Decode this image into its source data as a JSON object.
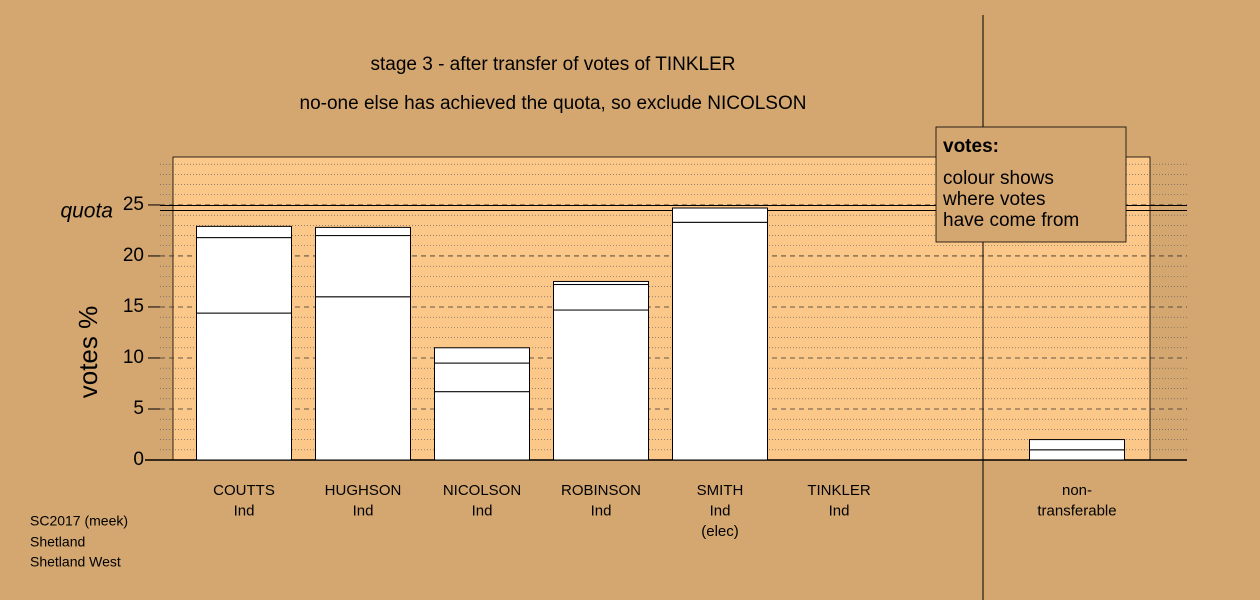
{
  "chart_data": {
    "type": "stacked_bar",
    "title": "stage 3 - after transfer of votes of TINKLER",
    "subtitle": "no-one else has achieved the quota, so exclude NICOLSON",
    "ylabel": "votes %",
    "quota_label": "quota",
    "quota": 24.7,
    "categories": [
      [
        "COUTTS",
        "Ind"
      ],
      [
        "HUGHSON",
        "Ind"
      ],
      [
        "NICOLSON",
        "Ind"
      ],
      [
        "ROBINSON",
        "Ind"
      ],
      [
        "SMITH",
        "Ind",
        "(elec)"
      ],
      [
        "TINKLER",
        "Ind"
      ],
      null,
      [
        "non-",
        "transferable"
      ]
    ],
    "series": [
      {
        "color": "#ffffff",
        "values": [
          14.4,
          16.0,
          6.7,
          14.7,
          23.3,
          0,
          null,
          1.0
        ]
      },
      {
        "color": "#ffffff",
        "values": [
          7.4,
          6.0,
          2.8,
          2.5,
          1.4,
          0,
          null,
          1.0
        ]
      },
      {
        "color": "#ffffff",
        "values": [
          1.1,
          0.8,
          1.5,
          0.3,
          null,
          0,
          null,
          null
        ]
      }
    ],
    "ylim": [
      0,
      29.7
    ],
    "yticks": [
      0,
      5,
      10,
      15,
      20,
      25
    ],
    "minor_yticks": [
      1,
      2,
      3,
      4,
      6,
      7,
      8,
      9,
      11,
      12,
      13,
      14,
      16,
      17,
      18,
      19,
      21,
      22,
      23,
      24,
      26,
      27,
      28,
      29
    ],
    "grid": true,
    "legend": {
      "title": "votes:",
      "lines": [
        "colour shows",
        "where votes",
        "have come from"
      ]
    },
    "footer": [
      "SC2017 (meek)",
      "Shetland",
      "Shetland West"
    ]
  }
}
